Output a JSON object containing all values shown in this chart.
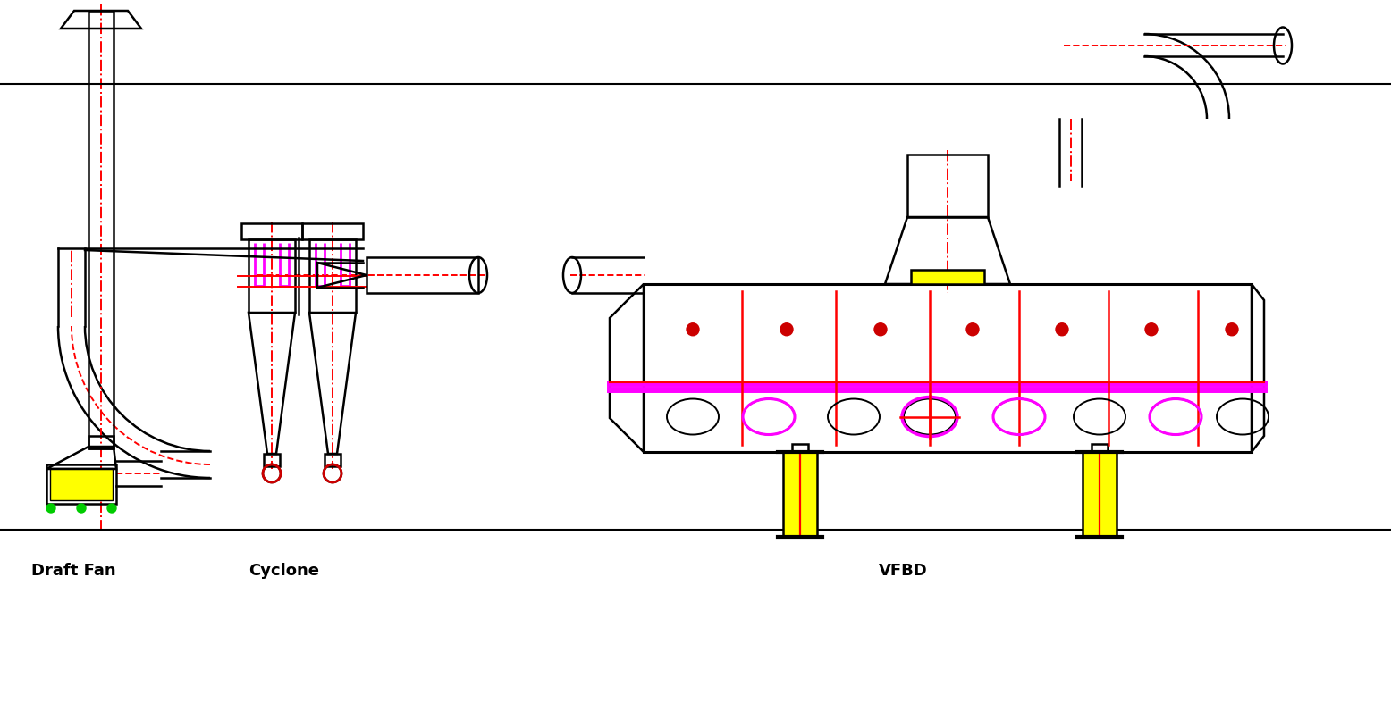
{
  "bg_color": "#ffffff",
  "line_color": "#000000",
  "red_color": "#ff0000",
  "magenta_color": "#ff00ff",
  "yellow_color": "#ffff00",
  "green_color": "#00cc00",
  "dark_red": "#cc0000",
  "label_draft_fan": "Draft Fan",
  "label_cyclone": "Cyclone",
  "label_vfbd": "VFBD",
  "label_fontsize": 13,
  "label_fontweight": "bold"
}
